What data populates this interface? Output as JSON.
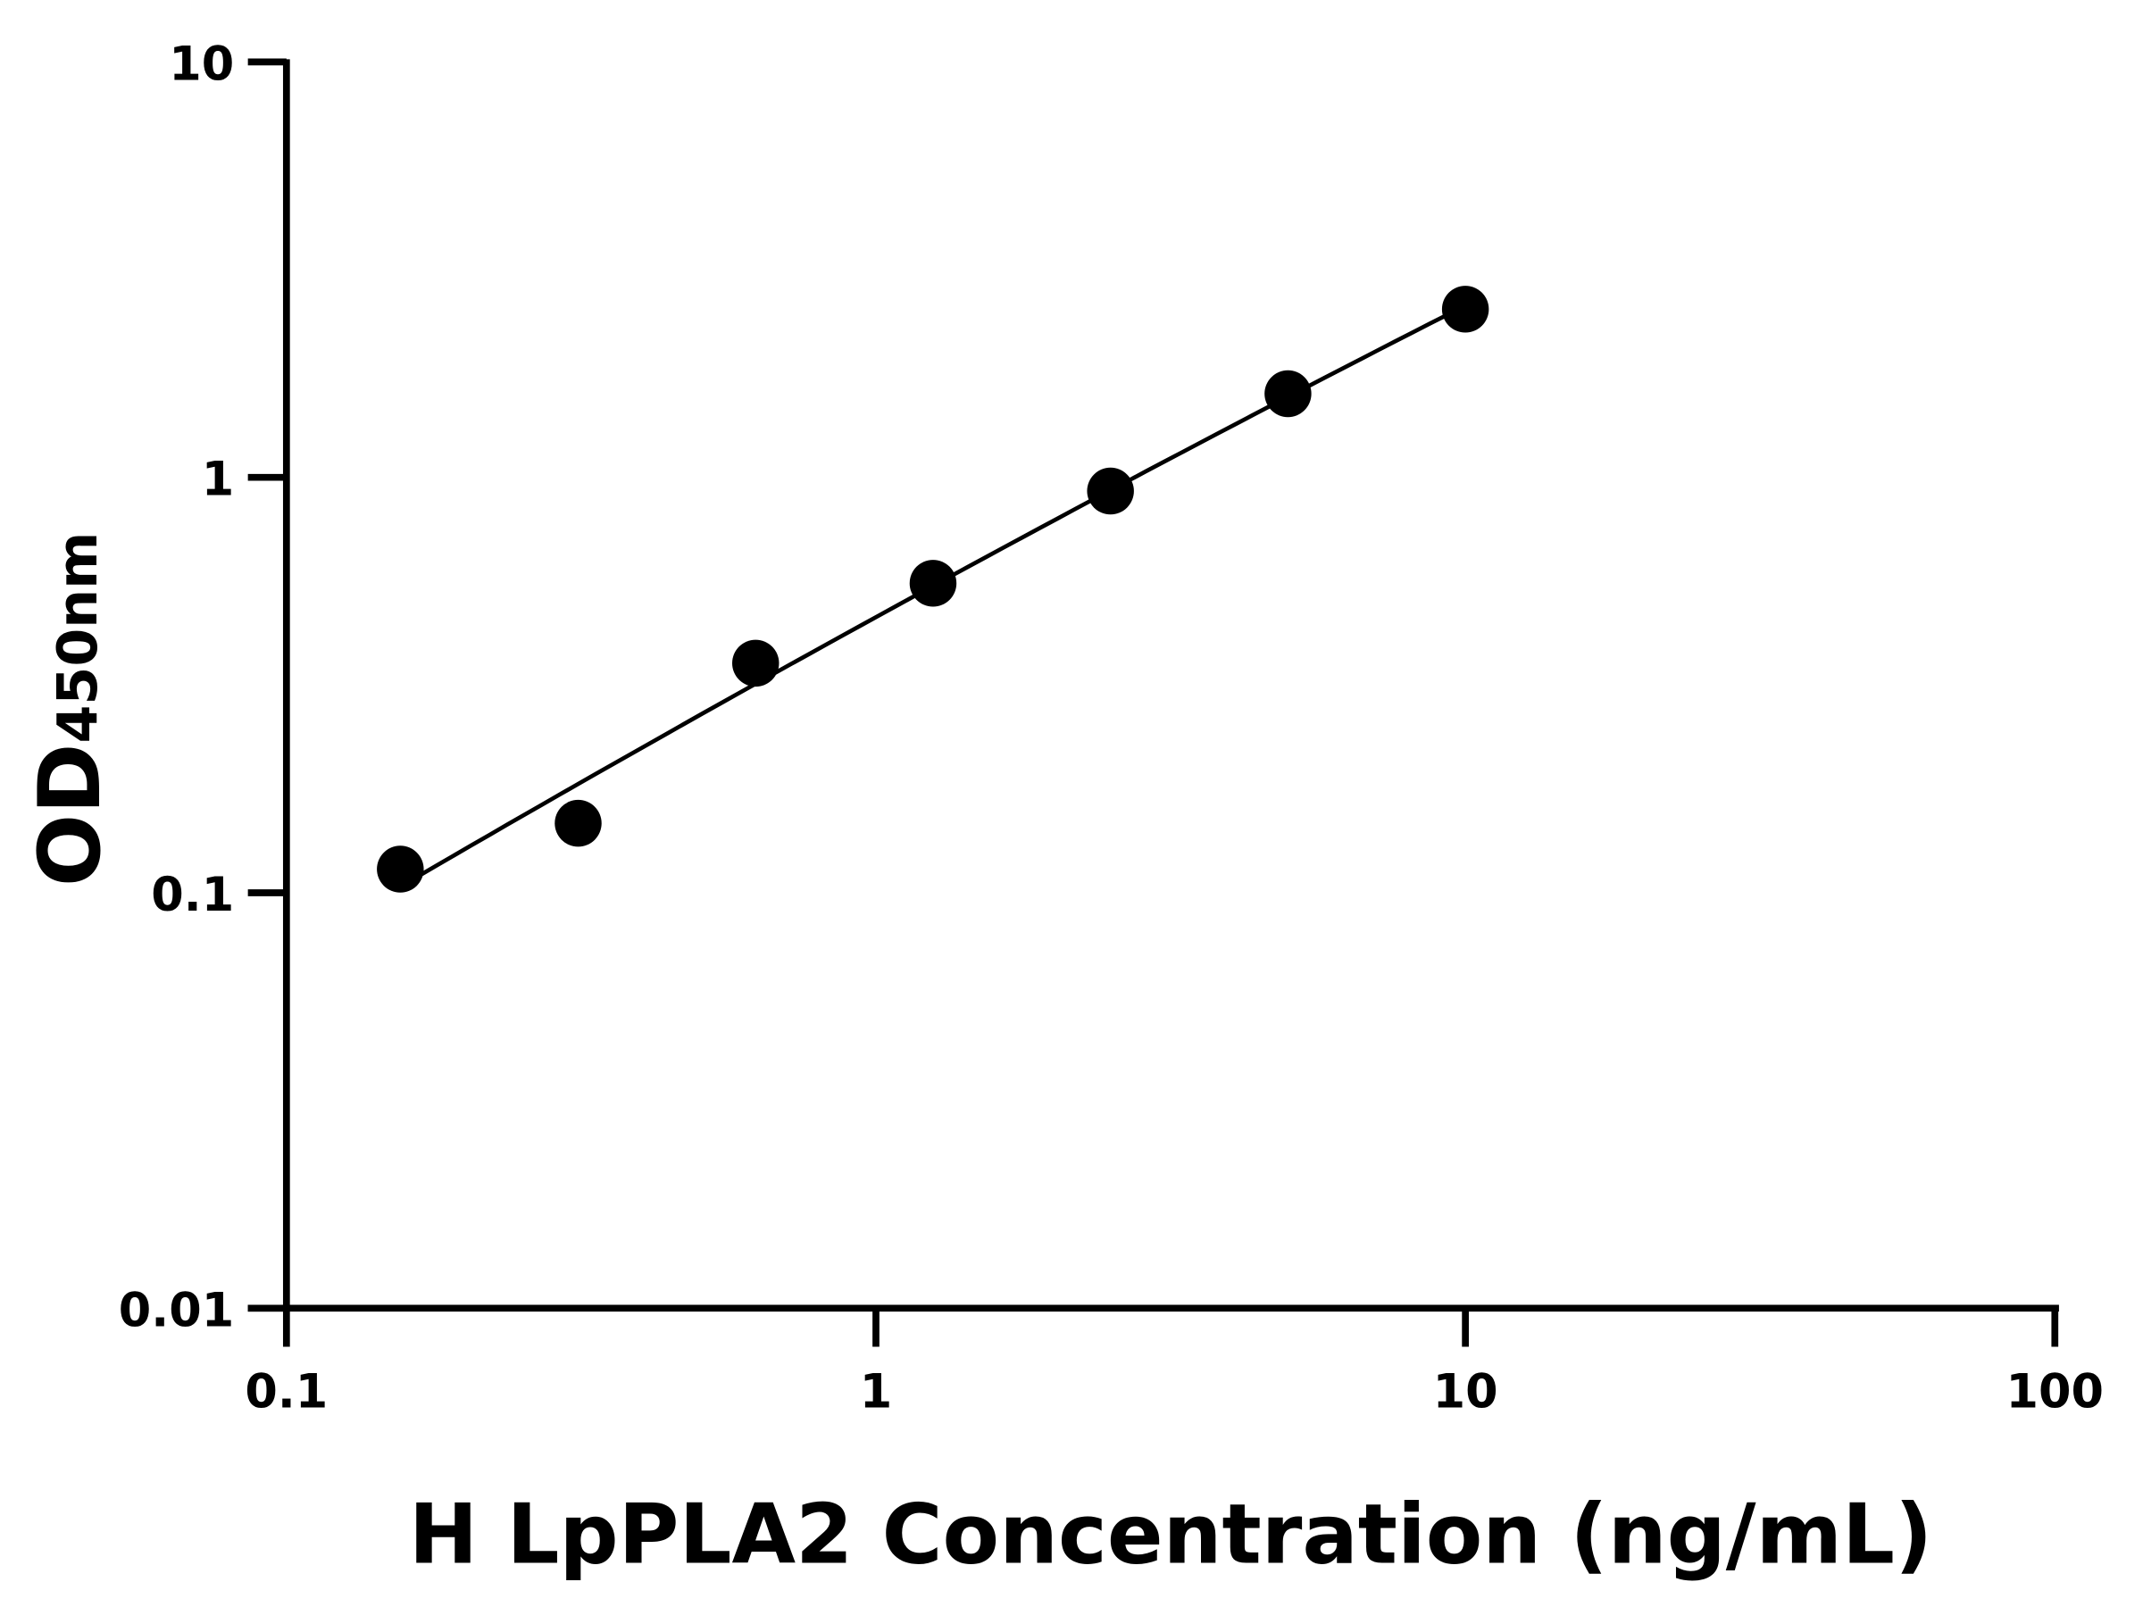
{
  "chart_data": {
    "type": "scatter",
    "title": "",
    "xlabel": "H LpPLA2 Concentration (ng/mL)",
    "ylabel_main": "OD",
    "ylabel_sub": "450nm",
    "xscale": "log",
    "yscale": "log",
    "xlim": [
      0.1,
      100
    ],
    "ylim": [
      0.01,
      10
    ],
    "xticks": [
      "0.1",
      "1",
      "10",
      "100"
    ],
    "yticks": [
      "0.01",
      "0.1",
      "1",
      "10"
    ],
    "grid": false,
    "legend": "none",
    "marker_color": "#000000",
    "line_color": "#000000",
    "points": [
      {
        "x": 0.156,
        "y": 0.114
      },
      {
        "x": 0.3125,
        "y": 0.147
      },
      {
        "x": 0.625,
        "y": 0.357
      },
      {
        "x": 1.25,
        "y": 0.556
      },
      {
        "x": 2.5,
        "y": 0.927
      },
      {
        "x": 5,
        "y": 1.59
      },
      {
        "x": 10,
        "y": 2.54
      }
    ],
    "fit_line": "curve through standards from 0.156 to 10"
  }
}
